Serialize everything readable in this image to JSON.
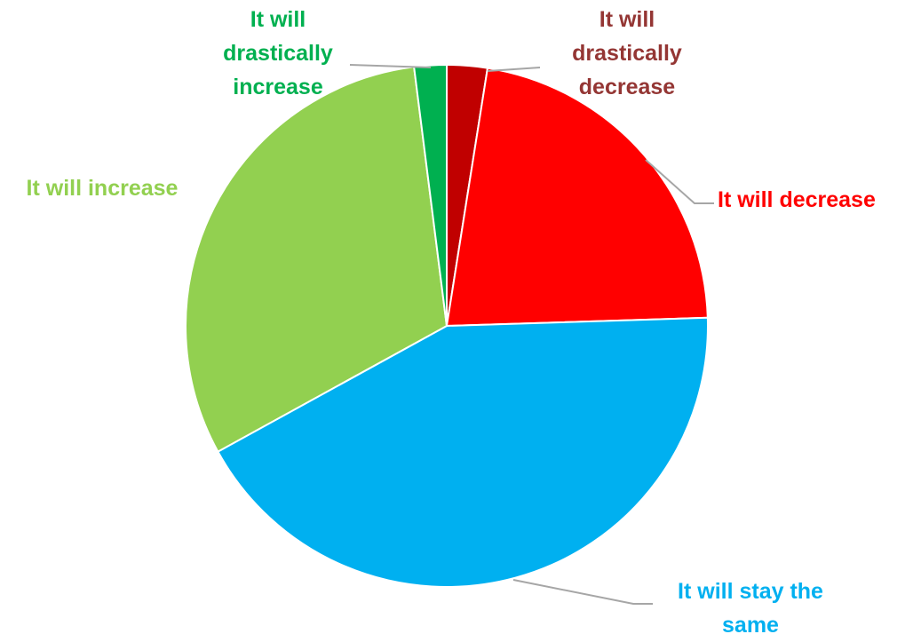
{
  "chart_data": {
    "type": "pie",
    "title": "",
    "start_angle_deg": 0,
    "direction": "clockwise",
    "slices": [
      {
        "label_lines": [
          "It will",
          "drastically",
          "decrease"
        ],
        "value": 2.5,
        "color": "#C00000",
        "label_color": "#943634"
      },
      {
        "label_lines": [
          "It will decrease"
        ],
        "value": 22.0,
        "color": "#FF0000",
        "label_color": "#FF0000"
      },
      {
        "label_lines": [
          "It will stay the",
          "same"
        ],
        "value": 42.5,
        "color": "#00B0F0",
        "label_color": "#00B0F0"
      },
      {
        "label_lines": [
          "It will increase"
        ],
        "value": 31.0,
        "color": "#92D050",
        "label_color": "#92D050"
      },
      {
        "label_lines": [
          "It will",
          "drastically",
          "increase"
        ],
        "value": 2.0,
        "color": "#00B050",
        "label_color": "#00B050"
      }
    ],
    "leader_line_color": "#A6A6A6",
    "slice_border_color": "#FFFFFF"
  }
}
